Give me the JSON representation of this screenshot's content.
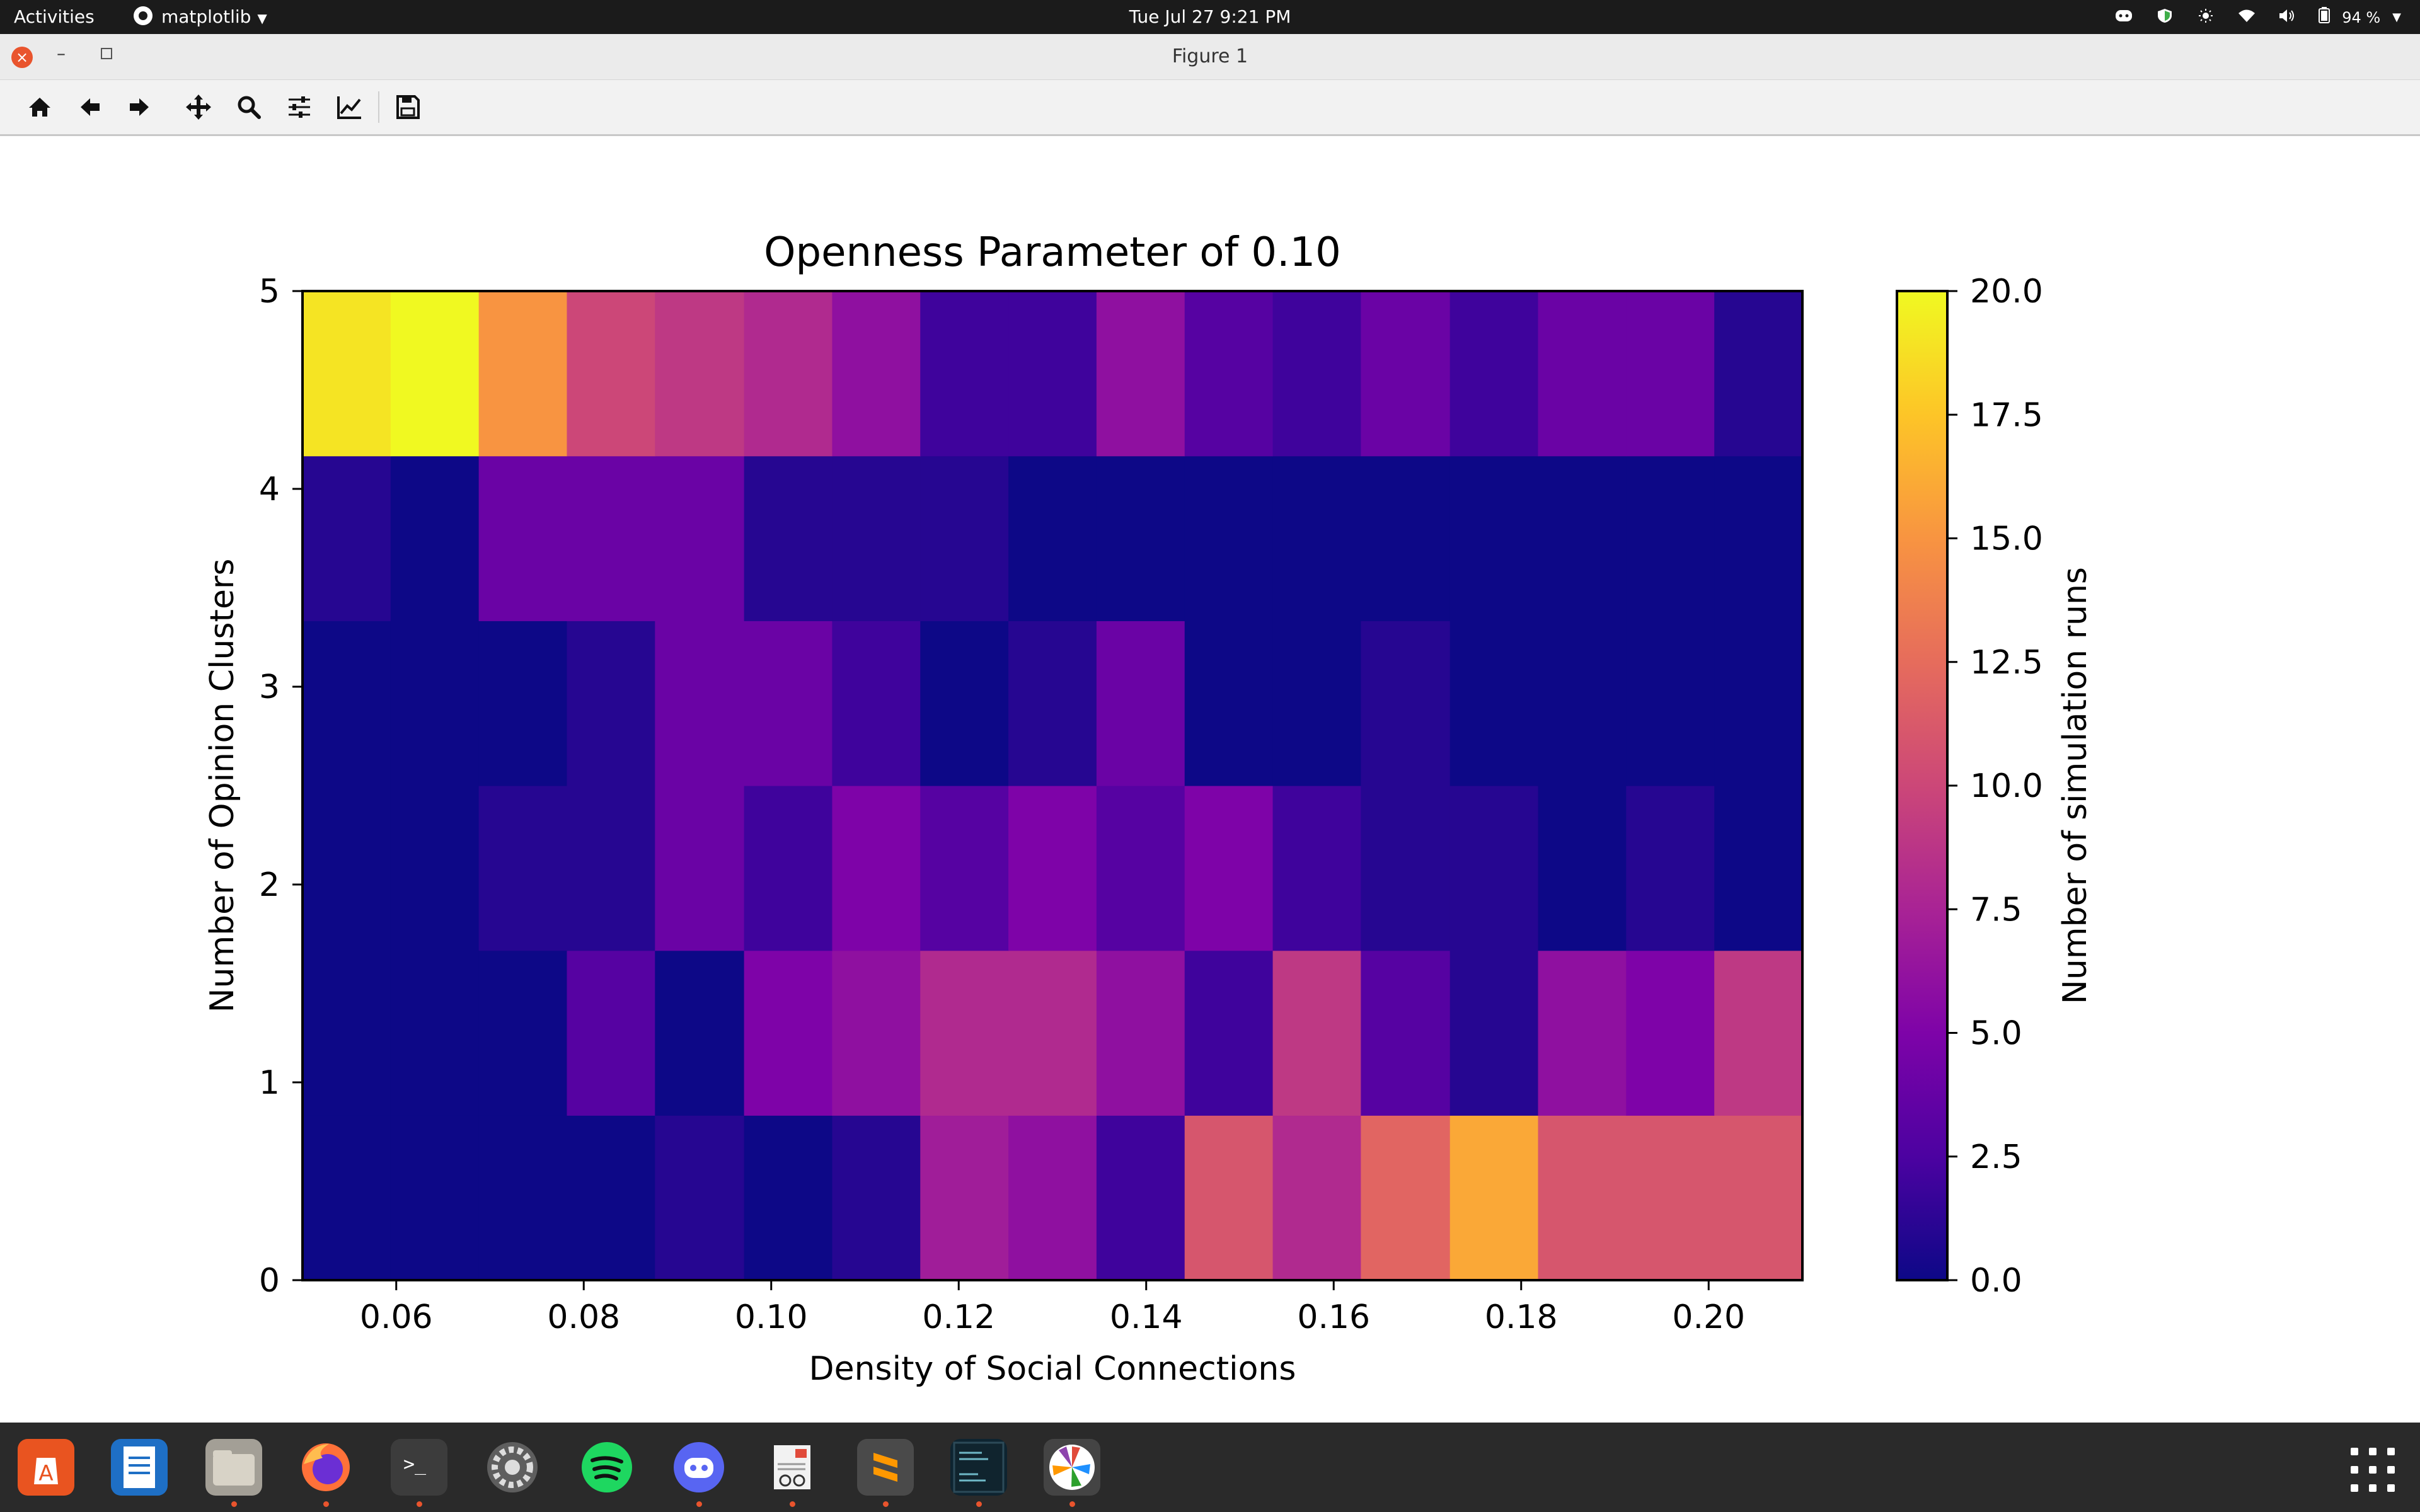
{
  "topbar": {
    "activities": "Activities",
    "app_name": "matplotlib",
    "clock": "Tue Jul 27   9:21 PM",
    "battery": "94 %"
  },
  "window": {
    "title": "Figure 1"
  },
  "toolbar": {
    "tools": [
      "home-icon",
      "back-arrow-icon",
      "forward-arrow-icon",
      "pan-move-icon",
      "zoom-magnifier-icon",
      "subplots-configure-icon",
      "edit-axes-icon",
      "save-figure-icon"
    ]
  },
  "dock": {
    "apps": [
      "ubuntu-software",
      "libreoffice-writer",
      "files",
      "firefox",
      "terminal",
      "settings",
      "spotify",
      "discord",
      "document-viewer",
      "sublime-text",
      "code-terminal",
      "matplotlib-figure"
    ]
  },
  "chart_data": {
    "type": "heatmap",
    "title": "Openness Parameter of 0.10",
    "xlabel": "Density of Social Connections",
    "ylabel": "Number of Opinion Clusters",
    "colorbar_label": "Number of simulation runs",
    "colormap": "plasma",
    "xlim": [
      0.05,
      0.21
    ],
    "ylim": [
      0,
      5
    ],
    "x_edges": [
      0.05,
      0.0594,
      0.0688,
      0.0782,
      0.0876,
      0.0971,
      0.1065,
      0.1159,
      0.1253,
      0.1347,
      0.1441,
      0.1535,
      0.1629,
      0.1724,
      0.1818,
      0.1912,
      0.2006,
      0.21
    ],
    "y_edges": [
      0,
      0.8333,
      1.6667,
      2.5,
      3.3333,
      4.1667,
      5
    ],
    "x_ticks": [
      "0.06",
      "0.08",
      "0.10",
      "0.12",
      "0.14",
      "0.16",
      "0.18",
      "0.20"
    ],
    "x_tick_values": [
      0.06,
      0.08,
      0.1,
      0.12,
      0.14,
      0.16,
      0.18,
      0.2
    ],
    "y_ticks": [
      "0",
      "1",
      "2",
      "3",
      "4",
      "5"
    ],
    "y_tick_values": [
      0,
      1,
      2,
      3,
      4,
      5
    ],
    "colorbar_ticks": [
      "0.0",
      "2.5",
      "5.0",
      "7.5",
      "10.0",
      "12.5",
      "15.0",
      "17.5",
      "20.0"
    ],
    "colorbar_tick_values": [
      0,
      2.5,
      5,
      7.5,
      10,
      12.5,
      15,
      17.5,
      20
    ],
    "vmin": 0,
    "vmax": 20,
    "grid": false,
    "values": [
      [
        0,
        0,
        0,
        0,
        1,
        0,
        1,
        7,
        6,
        2,
        11,
        8,
        12,
        16,
        11,
        11,
        11
      ],
      [
        0,
        0,
        0,
        3,
        0,
        5,
        6,
        8,
        8,
        6,
        2,
        9,
        3,
        1,
        6,
        5,
        9
      ],
      [
        0,
        0,
        1,
        1,
        4,
        2,
        5,
        3,
        5,
        3,
        5,
        2,
        1,
        1,
        0,
        1,
        0
      ],
      [
        0,
        0,
        0,
        1,
        4,
        4,
        2,
        0,
        1,
        4,
        0,
        0,
        1,
        0,
        0,
        0,
        0
      ],
      [
        1,
        0,
        4,
        4,
        4,
        1,
        1,
        1,
        0,
        0,
        0,
        0,
        0,
        0,
        0,
        0,
        0
      ],
      [
        19,
        20,
        15,
        10,
        9,
        8,
        6,
        2,
        2,
        6,
        3,
        2,
        4,
        2,
        4,
        4,
        1
      ]
    ]
  }
}
